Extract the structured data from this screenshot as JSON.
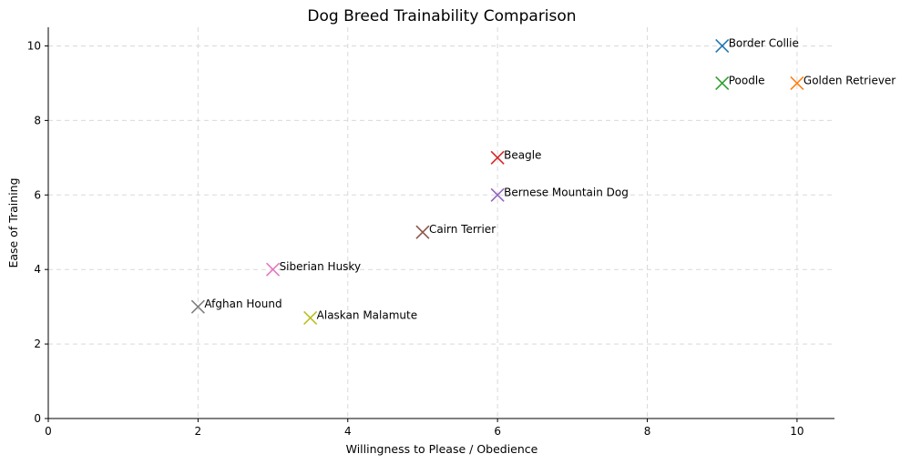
{
  "chart_data": {
    "type": "scatter",
    "title": "Dog Breed Trainability Comparison",
    "xlabel": "Willingness to Please / Obedience",
    "ylabel": "Ease of Training",
    "xlim": [
      0,
      10.5
    ],
    "ylim": [
      0,
      10.5
    ],
    "xticks": [
      0,
      2,
      4,
      6,
      8,
      10
    ],
    "yticks": [
      0,
      2,
      4,
      6,
      8,
      10
    ],
    "grid": true,
    "marker": "x",
    "points": [
      {
        "label": "Border Collie",
        "x": 9,
        "y": 10,
        "color": "#1f77b4"
      },
      {
        "label": "Golden Retriever",
        "x": 10,
        "y": 9,
        "color": "#ff7f0e"
      },
      {
        "label": "Poodle",
        "x": 9,
        "y": 9,
        "color": "#2ca02c"
      },
      {
        "label": "Beagle",
        "x": 6,
        "y": 7,
        "color": "#d62728"
      },
      {
        "label": "Bernese Mountain Dog",
        "x": 6,
        "y": 6,
        "color": "#9467bd"
      },
      {
        "label": "Cairn Terrier",
        "x": 5,
        "y": 5,
        "color": "#8c564b"
      },
      {
        "label": "Siberian Husky",
        "x": 3,
        "y": 4,
        "color": "#e377c2"
      },
      {
        "label": "Afghan Hound",
        "x": 2,
        "y": 3,
        "color": "#7f7f7f"
      },
      {
        "label": "Alaskan Malamute",
        "x": 3.5,
        "y": 2.7,
        "color": "#bcbd22"
      }
    ]
  }
}
